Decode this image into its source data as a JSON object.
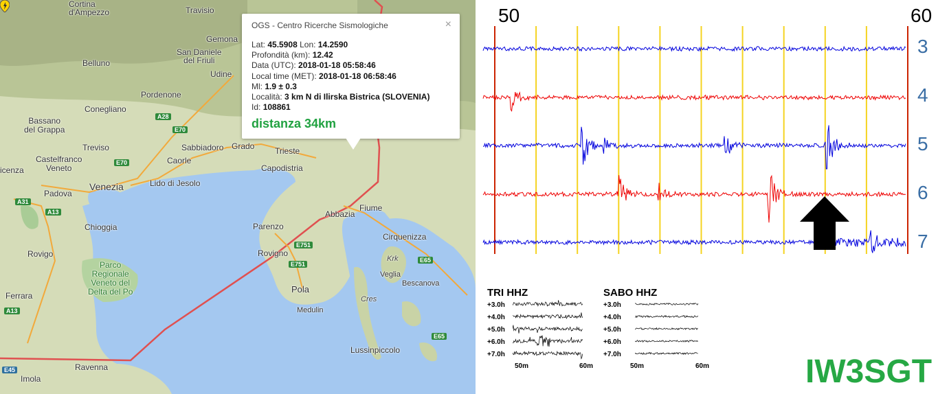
{
  "map": {
    "places": [
      {
        "id": "cortina",
        "text": "Cortina\nd'Ampezzo"
      },
      {
        "id": "belluno",
        "text": "Belluno"
      },
      {
        "id": "udine",
        "text": "Udine"
      },
      {
        "id": "pordenone",
        "text": "Pordenone"
      },
      {
        "id": "conegliano",
        "text": "Conegliano"
      },
      {
        "id": "bassano",
        "text": "Bassano\ndel Grappa"
      },
      {
        "id": "treviso",
        "text": "Treviso"
      },
      {
        "id": "castelfranco",
        "text": "Castelfranco\nVeneto"
      },
      {
        "id": "padova",
        "text": "Padova"
      },
      {
        "id": "venezia",
        "text": "Venezia"
      },
      {
        "id": "chioggia",
        "text": "Chioggia"
      },
      {
        "id": "rovigo",
        "text": "Rovigo"
      },
      {
        "id": "ferrara",
        "text": "Ferrara"
      },
      {
        "id": "ravenna",
        "text": "Ravenna"
      },
      {
        "id": "imola",
        "text": "Imola"
      },
      {
        "id": "lido",
        "text": "Lido di Jesolo"
      },
      {
        "id": "caorle",
        "text": "Caorle"
      },
      {
        "id": "sabbiadoro",
        "text": "Sabbiadoro"
      },
      {
        "id": "grado",
        "text": "Grado"
      },
      {
        "id": "trieste",
        "text": "Trieste"
      },
      {
        "id": "capodistria",
        "text": "Capodistria"
      },
      {
        "id": "parenzo",
        "text": "Parenzo"
      },
      {
        "id": "rovigno",
        "text": "Rovigno"
      },
      {
        "id": "pola",
        "text": "Pola"
      },
      {
        "id": "medulin",
        "text": "Medulin"
      },
      {
        "id": "abbazia",
        "text": "Abbazia"
      },
      {
        "id": "fiume",
        "text": "Fiume"
      },
      {
        "id": "cirquenizza",
        "text": "Cirquenizza"
      },
      {
        "id": "krk",
        "text": "Krk"
      },
      {
        "id": "veglia",
        "text": "Veglia"
      },
      {
        "id": "bescanova",
        "text": "Bescanova"
      },
      {
        "id": "cres",
        "text": "Cres"
      },
      {
        "id": "lussinpiccolo",
        "text": "Lussinpiccolo"
      },
      {
        "id": "travesio",
        "text": "Travisio"
      },
      {
        "id": "gemona",
        "text": "Gemona"
      },
      {
        "id": "sandaniele",
        "text": "San Daniele\ndel Friuli"
      },
      {
        "id": "cenza",
        "text": "icenza"
      },
      {
        "id": "park",
        "text": "Parco\nRegionale\nVeneto del\nDelta del Po"
      }
    ],
    "roads": [
      {
        "id": "a28",
        "text": "A28"
      },
      {
        "id": "e70a",
        "text": "E70"
      },
      {
        "id": "e70b",
        "text": "E70"
      },
      {
        "id": "a31",
        "text": "A31"
      },
      {
        "id": "a13a",
        "text": "A13"
      },
      {
        "id": "a13b",
        "text": "A13"
      },
      {
        "id": "e751a",
        "text": "E751"
      },
      {
        "id": "e751b",
        "text": "E751"
      },
      {
        "id": "e65a",
        "text": "E65"
      },
      {
        "id": "e65b",
        "text": "E65"
      },
      {
        "id": "e45",
        "text": "E45"
      }
    ]
  },
  "popup": {
    "title": "OGS - Centro Ricerche Sismologiche",
    "close": "×",
    "lat_label": "Lat:",
    "lat": "45.5908",
    "lon_label": "Lon:",
    "lon": "14.2590",
    "depth_label": "Profondità (km):",
    "depth": "12.42",
    "utc_label": "Data (UTC):",
    "utc": "2018-01-18 05:58:46",
    "local_label": "Local time (MET):",
    "local": "2018-01-18 06:58:46",
    "ml_label": "Ml:",
    "ml": "1.9 ± 0.3",
    "loc_label": "Località:",
    "loc": "3 km N di Ilirska Bistrica (SLOVENIA)",
    "id_label": "Id:",
    "id": "108861",
    "distance": "distanza 34km"
  },
  "seismogram": {
    "start_minute": "50",
    "end_minute": "60",
    "hours": [
      "3",
      "4",
      "5",
      "6",
      "7"
    ],
    "trace_colors": [
      "#0000dd",
      "#ee0000",
      "#0000dd",
      "#ee0000",
      "#0000dd"
    ],
    "gridline_color": "#f5d320",
    "boundary_color": "#cc2200"
  },
  "mini": [
    {
      "title": "TRI HHZ",
      "rows": [
        "+3.0h",
        "+4.0h",
        "+5.0h",
        "+6.0h",
        "+7.0h"
      ],
      "x_start": "50m",
      "x_end": "60m"
    },
    {
      "title": "SABO HHZ",
      "rows": [
        "+3.0h",
        "+4.0h",
        "+5.0h",
        "+6.0h",
        "+7.0h"
      ],
      "x_start": "50m",
      "x_end": "60m"
    }
  ],
  "callsign": "IW3SGT"
}
